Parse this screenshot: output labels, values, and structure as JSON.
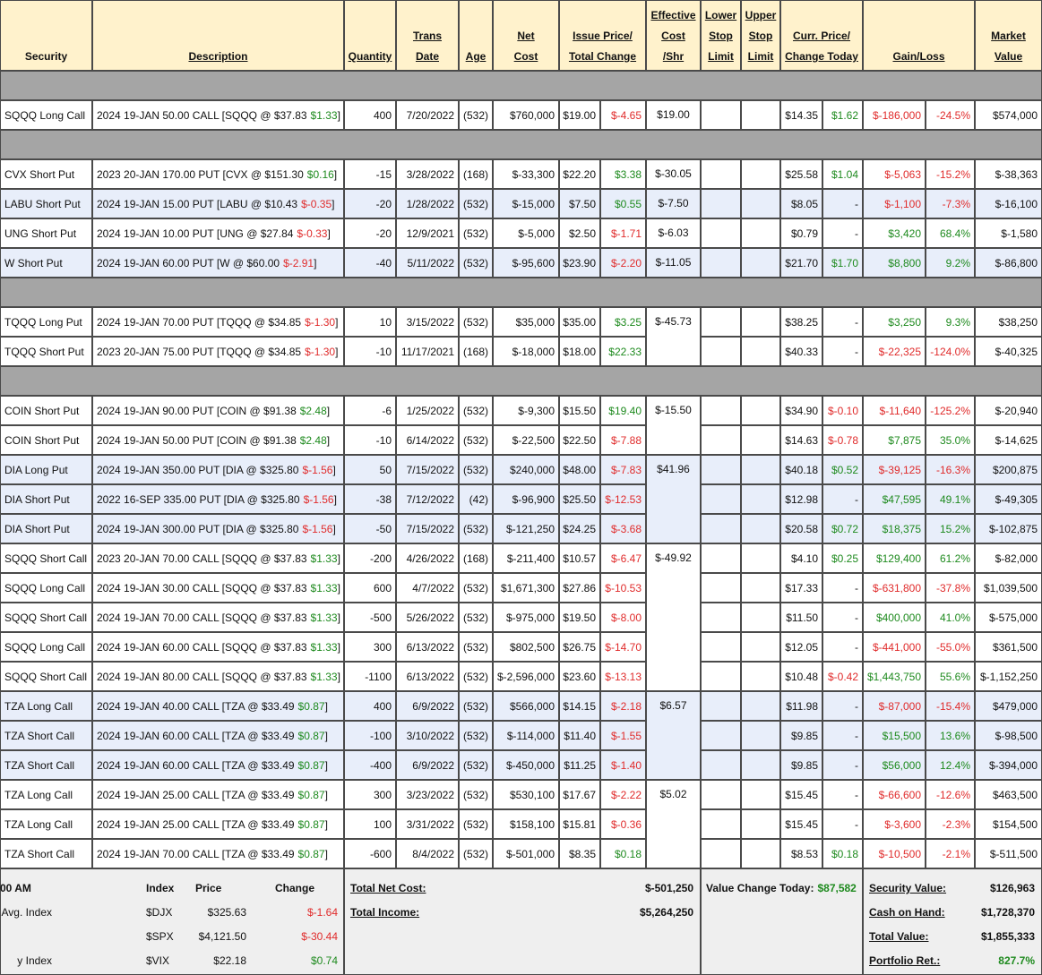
{
  "header": [
    {
      "lines": [
        "Security"
      ]
    },
    {
      "lines": [
        "Description"
      ]
    },
    {
      "lines": [
        "Quantity"
      ]
    },
    {
      "lines": [
        "Trans",
        "Date"
      ]
    },
    {
      "lines": [
        "Age"
      ]
    },
    {
      "lines": [
        "Net",
        "Cost"
      ]
    },
    {
      "lines": [
        "Issue Price/",
        "Total Change"
      ]
    },
    {
      "lines": [
        "Effective",
        "Cost",
        "/Shr"
      ]
    },
    {
      "lines": [
        "Lower",
        "Stop",
        "Limit"
      ]
    },
    {
      "lines": [
        "Upper",
        "Stop",
        "Limit"
      ]
    },
    {
      "lines": [
        "Curr. Price/",
        "Change Today"
      ]
    },
    {
      "lines": [
        "Gain/Loss"
      ]
    },
    {
      "lines": [
        "Market",
        "Value"
      ]
    }
  ],
  "sections": [
    {
      "groups": [
        {
          "effective_cost": "$19.00",
          "rows": [
            [
              "SQQQ Long Call",
              [
                "2024 19-JAN 50.00 CALL [SQQQ @ $37.83",
                "$1.33",
                "]"
              ],
              "400",
              "7/20/2022",
              "(532)",
              "$760,000",
              "$19.00",
              "$-4.65",
              "$14.35",
              "$1.62",
              "$-186,000",
              "-24.5%",
              "$574,000"
            ]
          ]
        }
      ]
    },
    {
      "groups": [
        {
          "effective_cost": "$-30.05",
          "rows": [
            [
              "CVX Short Put",
              [
                "2023 20-JAN 170.00 PUT [CVX @ $151.30",
                "$0.16",
                "]"
              ],
              "-15",
              "3/28/2022",
              "(168)",
              "$-33,300",
              "$22.20",
              "$3.38",
              "$25.58",
              "$1.04",
              "$-5,063",
              "-15.2%",
              "$-38,363"
            ]
          ]
        },
        {
          "effective_cost": "$-7.50",
          "shaded": true,
          "rows": [
            [
              "LABU Short Put",
              [
                "2024 19-JAN 15.00 PUT [LABU @ $10.43",
                "$-0.35",
                "]"
              ],
              "-20",
              "1/28/2022",
              "(532)",
              "$-15,000",
              "$7.50",
              "$0.55",
              "$8.05",
              "-",
              "$-1,100",
              "-7.3%",
              "$-16,100"
            ]
          ]
        },
        {
          "effective_cost": "$-6.03",
          "rows": [
            [
              "UNG Short Put",
              [
                "2024 19-JAN 10.00 PUT [UNG @ $27.84",
                "$-0.33",
                "]"
              ],
              "-20",
              "12/9/2021",
              "(532)",
              "$-5,000",
              "$2.50",
              "$-1.71",
              "$0.79",
              "-",
              "$3,420",
              "68.4%",
              "$-1,580"
            ]
          ]
        },
        {
          "effective_cost": "$-11.05",
          "shaded": true,
          "rows": [
            [
              "W Short Put",
              [
                "2024 19-JAN 60.00 PUT [W @ $60.00",
                "$-2.91",
                "]"
              ],
              "-40",
              "5/11/2022",
              "(532)",
              "$-95,600",
              "$23.90",
              "$-2.20",
              "$21.70",
              "$1.70",
              "$8,800",
              "9.2%",
              "$-86,800"
            ]
          ]
        }
      ]
    },
    {
      "groups": [
        {
          "effective_cost": "$-45.73",
          "rows": [
            [
              "TQQQ Long Put",
              [
                "2024 19-JAN 70.00 PUT [TQQQ @ $34.85",
                "$-1.30",
                "]"
              ],
              "10",
              "3/15/2022",
              "(532)",
              "$35,000",
              "$35.00",
              "$3.25",
              "$38.25",
              "-",
              "$3,250",
              "9.3%",
              "$38,250"
            ],
            [
              "TQQQ Short Put",
              [
                "2023 20-JAN 75.00 PUT [TQQQ @ $34.85",
                "$-1.30",
                "]"
              ],
              "-10",
              "11/17/2021",
              "(168)",
              "$-18,000",
              "$18.00",
              "$22.33",
              "$40.33",
              "-",
              "$-22,325",
              "-124.0%",
              "$-40,325"
            ]
          ]
        }
      ]
    },
    {
      "groups": [
        {
          "effective_cost": "$-15.50",
          "rows": [
            [
              "COIN Short Put",
              [
                "2024 19-JAN 90.00 PUT [COIN @ $91.38",
                "$2.48",
                "]"
              ],
              "-6",
              "1/25/2022",
              "(532)",
              "$-9,300",
              "$15.50",
              "$19.40",
              "$34.90",
              "$-0.10",
              "$-11,640",
              "-125.2%",
              "$-20,940"
            ],
            [
              "COIN Short Put",
              [
                "2024 19-JAN 50.00 PUT [COIN @ $91.38",
                "$2.48",
                "]"
              ],
              "-10",
              "6/14/2022",
              "(532)",
              "$-22,500",
              "$22.50",
              "$-7.88",
              "$14.63",
              "$-0.78",
              "$7,875",
              "35.0%",
              "$-14,625"
            ]
          ]
        },
        {
          "effective_cost": "$41.96",
          "shaded": true,
          "rows": [
            [
              "DIA Long Put",
              [
                "2024 19-JAN 350.00 PUT [DIA @ $325.80",
                "$-1.56",
                "]"
              ],
              "50",
              "7/15/2022",
              "(532)",
              "$240,000",
              "$48.00",
              "$-7.83",
              "$40.18",
              "$0.52",
              "$-39,125",
              "-16.3%",
              "$200,875"
            ],
            [
              "DIA Short Put",
              [
                "2022 16-SEP 335.00 PUT [DIA @ $325.80",
                "$-1.56",
                "]"
              ],
              "-38",
              "7/12/2022",
              "(42)",
              "$-96,900",
              "$25.50",
              "$-12.53",
              "$12.98",
              "-",
              "$47,595",
              "49.1%",
              "$-49,305"
            ],
            [
              "DIA Short Put",
              [
                "2024 19-JAN 300.00 PUT [DIA @ $325.80",
                "$-1.56",
                "]"
              ],
              "-50",
              "7/15/2022",
              "(532)",
              "$-121,250",
              "$24.25",
              "$-3.68",
              "$20.58",
              "$0.72",
              "$18,375",
              "15.2%",
              "$-102,875"
            ]
          ]
        },
        {
          "effective_cost": "$-49.92",
          "rows": [
            [
              "SQQQ Short Call",
              [
                "2023 20-JAN 70.00 CALL [SQQQ @ $37.83",
                "$1.33",
                "]"
              ],
              "-200",
              "4/26/2022",
              "(168)",
              "$-211,400",
              "$10.57",
              "$-6.47",
              "$4.10",
              "$0.25",
              "$129,400",
              "61.2%",
              "$-82,000"
            ],
            [
              "SQQQ Long Call",
              [
                "2024 19-JAN 30.00 CALL [SQQQ @ $37.83",
                "$1.33",
                "]"
              ],
              "600",
              "4/7/2022",
              "(532)",
              "$1,671,300",
              "$27.86",
              "$-10.53",
              "$17.33",
              "-",
              "$-631,800",
              "-37.8%",
              "$1,039,500"
            ],
            [
              "SQQQ Short Call",
              [
                "2024 19-JAN 70.00 CALL [SQQQ @ $37.83",
                "$1.33",
                "]"
              ],
              "-500",
              "5/26/2022",
              "(532)",
              "$-975,000",
              "$19.50",
              "$-8.00",
              "$11.50",
              "-",
              "$400,000",
              "41.0%",
              "$-575,000"
            ],
            [
              "SQQQ Long Call",
              [
                "2024 19-JAN 60.00 CALL [SQQQ @ $37.83",
                "$1.33",
                "]"
              ],
              "300",
              "6/13/2022",
              "(532)",
              "$802,500",
              "$26.75",
              "$-14.70",
              "$12.05",
              "-",
              "$-441,000",
              "-55.0%",
              "$361,500"
            ],
            [
              "SQQQ Short Call",
              [
                "2024 19-JAN 80.00 CALL [SQQQ @ $37.83",
                "$1.33",
                "]"
              ],
              "-1100",
              "6/13/2022",
              "(532)",
              "$-2,596,000",
              "$23.60",
              "$-13.13",
              "$10.48",
              "$-0.42",
              "$1,443,750",
              "55.6%",
              "$-1,152,250"
            ]
          ]
        },
        {
          "effective_cost": "$6.57",
          "shaded": true,
          "rows": [
            [
              "TZA Long Call",
              [
                "2024 19-JAN 40.00 CALL [TZA @ $33.49",
                "$0.87",
                "]"
              ],
              "400",
              "6/9/2022",
              "(532)",
              "$566,000",
              "$14.15",
              "$-2.18",
              "$11.98",
              "-",
              "$-87,000",
              "-15.4%",
              "$479,000"
            ],
            [
              "TZA Short Call",
              [
                "2024 19-JAN 60.00 CALL [TZA @ $33.49",
                "$0.87",
                "]"
              ],
              "-100",
              "3/10/2022",
              "(532)",
              "$-114,000",
              "$11.40",
              "$-1.55",
              "$9.85",
              "-",
              "$15,500",
              "13.6%",
              "$-98,500"
            ],
            [
              "TZA Short Call",
              [
                "2024 19-JAN 60.00 CALL [TZA @ $33.49",
                "$0.87",
                "]"
              ],
              "-400",
              "6/9/2022",
              "(532)",
              "$-450,000",
              "$11.25",
              "$-1.40",
              "$9.85",
              "-",
              "$56,000",
              "12.4%",
              "$-394,000"
            ]
          ]
        },
        {
          "effective_cost": "$5.02",
          "rows": [
            [
              "TZA Long Call",
              [
                "2024 19-JAN 25.00 CALL [TZA @ $33.49",
                "$0.87",
                "]"
              ],
              "300",
              "3/23/2022",
              "(532)",
              "$530,100",
              "$17.67",
              "$-2.22",
              "$15.45",
              "-",
              "$-66,600",
              "-12.6%",
              "$463,500"
            ],
            [
              "TZA Long Call",
              [
                "2024 19-JAN 25.00 CALL [TZA @ $33.49",
                "$0.87",
                "]"
              ],
              "100",
              "3/31/2022",
              "(532)",
              "$158,100",
              "$15.81",
              "$-0.36",
              "$15.45",
              "-",
              "$-3,600",
              "-2.3%",
              "$154,500"
            ],
            [
              "TZA Short Call",
              [
                "2024 19-JAN 70.00 CALL [TZA @ $33.49",
                "$0.87",
                "]"
              ],
              "-600",
              "8/4/2022",
              "(532)",
              "$-501,000",
              "$8.35",
              "$0.18",
              "$8.53",
              "$0.18",
              "$-10,500",
              "-2.1%",
              "$-511,500"
            ]
          ]
        }
      ]
    }
  ],
  "footer": {
    "market": {
      "heading": "00 AM",
      "columns": [
        "Index",
        "Price",
        "Change"
      ],
      "rows": [
        {
          "name": "Avg. Index",
          "index": "$DJX",
          "price": "$325.63",
          "change": "$-1.64"
        },
        {
          "index": "$SPX",
          "price": "$4,121.50",
          "change": "$-30.44"
        },
        {
          "name": "y Index",
          "index": "$VIX",
          "price": "$22.18",
          "change": "$0.74"
        }
      ]
    },
    "totals": [
      {
        "label": "Total Net Cost:",
        "value": "$-501,250"
      },
      {
        "label": "Total Income:",
        "value": "$5,264,250"
      }
    ],
    "value_change": {
      "label": "Value Change Today:",
      "value": "$87,582"
    },
    "summary": [
      {
        "label": "Security Value:",
        "value": "$126,963"
      },
      {
        "label": "Cash on Hand:",
        "value": "$1,728,370"
      },
      {
        "label": "Total Value:",
        "value": "$1,855,333"
      },
      {
        "label": "Portfolio Ret.:",
        "value": "827.7%",
        "highlight": true
      }
    ]
  }
}
